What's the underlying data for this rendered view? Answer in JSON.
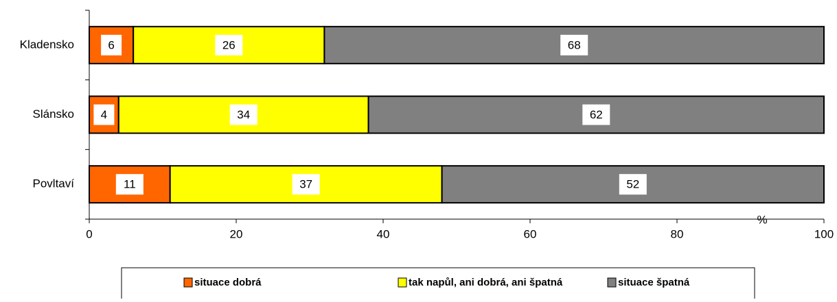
{
  "chart_data": {
    "type": "stacked_bar_horizontal",
    "categories": [
      "Kladensko",
      "Slánsko",
      "Povltaví"
    ],
    "series": [
      {
        "name": "situace dobrá",
        "color": "#ff6600",
        "values": [
          6,
          4,
          11
        ]
      },
      {
        "name": "tak napůl, ani dobrá, ani špatná",
        "color": "#ffff00",
        "values": [
          26,
          34,
          37
        ]
      },
      {
        "name": "situace špatná",
        "color": "#808080",
        "values": [
          68,
          62,
          52
        ]
      }
    ],
    "xlim": [
      0,
      100
    ],
    "xticks": [
      0,
      20,
      40,
      60,
      80,
      100
    ],
    "x_label": "%"
  }
}
